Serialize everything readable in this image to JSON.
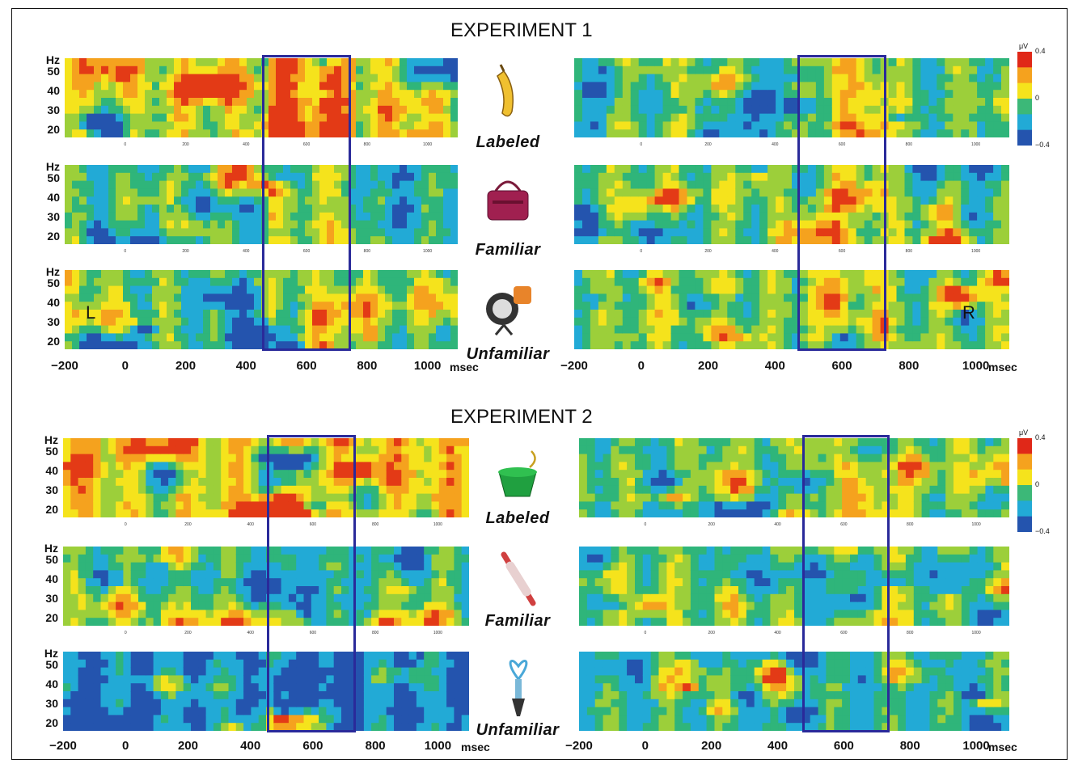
{
  "experiments": [
    {
      "title": "EXPERIMENT 1",
      "conditions": [
        {
          "label": "Labeled",
          "icon": "banana-icon"
        },
        {
          "label": "Familiar",
          "icon": "handbag-icon"
        },
        {
          "label": "Unfamiliar",
          "icon": "lamp-icon"
        }
      ]
    },
    {
      "title": "EXPERIMENT 2",
      "conditions": [
        {
          "label": "Labeled",
          "icon": "colander-icon"
        },
        {
          "label": "Familiar",
          "icon": "rolling-pin-icon"
        },
        {
          "label": "Unfamiliar",
          "icon": "wine-stopper-icon"
        }
      ]
    }
  ],
  "hemisphere_labels": {
    "left": "L",
    "right": "R"
  },
  "chart_data": {
    "type": "heatmap",
    "xlabel": "msec",
    "ylabel": "Hz",
    "x_ticks": [
      -200,
      0,
      200,
      400,
      600,
      800,
      1000
    ],
    "x_ticks_small": [
      0,
      200,
      400,
      600,
      800,
      1000
    ],
    "x_tick_labels": [
      "−200",
      "0",
      "200",
      "400",
      "600",
      "800",
      "1000"
    ],
    "y_ticks": [
      20,
      30,
      40,
      50
    ],
    "xlim": [
      -200,
      1100
    ],
    "ylim": [
      20,
      60
    ],
    "roi_window": [
      500,
      800
    ],
    "colorbar": {
      "unit": "μV",
      "min": -0.4,
      "max": 0.4,
      "labels": [
        "0.4",
        "0",
        "−0.4"
      ]
    },
    "colors": {
      "low": "#2050a8",
      "mid_low": "#20b0d0",
      "mid": "#3cb878",
      "mid_high": "#f0e020",
      "high": "#e02818"
    },
    "panels": [
      {
        "experiment": 1,
        "condition": "Labeled",
        "hemisphere": "L",
        "mean_level": 0.3,
        "roi_level": 0.9
      },
      {
        "experiment": 1,
        "condition": "Familiar",
        "hemisphere": "L",
        "mean_level": -0.1,
        "roi_level": 0.3
      },
      {
        "experiment": 1,
        "condition": "Unfamiliar",
        "hemisphere": "L",
        "mean_level": 0.0,
        "roi_level": 0.2
      },
      {
        "experiment": 1,
        "condition": "Labeled",
        "hemisphere": "R",
        "mean_level": -0.05,
        "roi_level": 0.3
      },
      {
        "experiment": 1,
        "condition": "Familiar",
        "hemisphere": "R",
        "mean_level": 0.0,
        "roi_level": 0.2
      },
      {
        "experiment": 1,
        "condition": "Unfamiliar",
        "hemisphere": "R",
        "mean_level": 0.05,
        "roi_level": 0.5
      },
      {
        "experiment": 2,
        "condition": "Labeled",
        "hemisphere": "L",
        "mean_level": 0.5,
        "roi_level": 0.7
      },
      {
        "experiment": 2,
        "condition": "Familiar",
        "hemisphere": "L",
        "mean_level": -0.05,
        "roi_level": -0.3
      },
      {
        "experiment": 2,
        "condition": "Unfamiliar",
        "hemisphere": "L",
        "mean_level": -0.5,
        "roi_level": -0.9
      },
      {
        "experiment": 2,
        "condition": "Labeled",
        "hemisphere": "R",
        "mean_level": 0.05,
        "roi_level": 0.4
      },
      {
        "experiment": 2,
        "condition": "Familiar",
        "hemisphere": "R",
        "mean_level": 0.05,
        "roi_level": 0.3
      },
      {
        "experiment": 2,
        "condition": "Unfamiliar",
        "hemisphere": "R",
        "mean_level": -0.1,
        "roi_level": -0.2
      }
    ]
  }
}
